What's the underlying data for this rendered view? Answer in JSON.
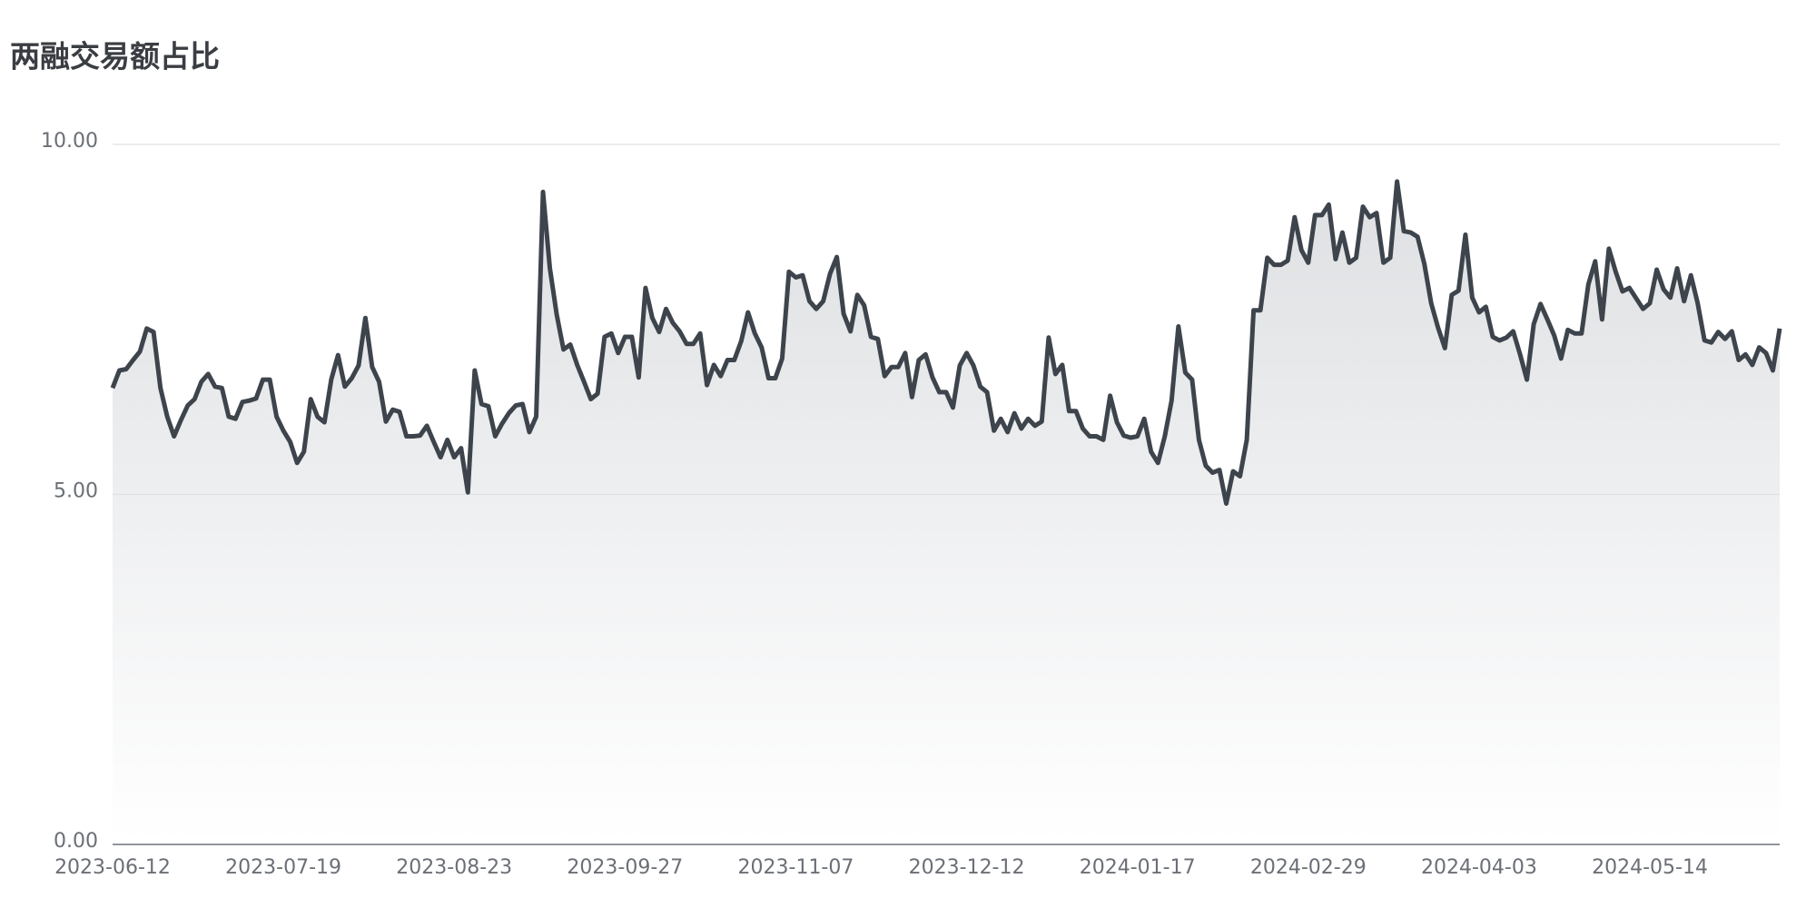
{
  "chart_data": {
    "type": "area",
    "title": "两融交易额占比",
    "categories": [
      "2023-06-12",
      null,
      null,
      null,
      null,
      null,
      null,
      null,
      null,
      null,
      null,
      null,
      null,
      null,
      null,
      null,
      null,
      null,
      null,
      null,
      null,
      null,
      null,
      null,
      null,
      "2023-07-19",
      null,
      null,
      null,
      null,
      null,
      null,
      null,
      null,
      null,
      null,
      null,
      null,
      null,
      null,
      null,
      null,
      null,
      null,
      null,
      null,
      null,
      null,
      null,
      null,
      "2023-08-23",
      null,
      null,
      null,
      null,
      null,
      null,
      null,
      null,
      null,
      null,
      null,
      null,
      null,
      null,
      null,
      null,
      null,
      null,
      null,
      null,
      null,
      null,
      null,
      null,
      "2023-09-27",
      null,
      null,
      null,
      null,
      null,
      null,
      null,
      null,
      null,
      null,
      null,
      null,
      null,
      null,
      null,
      null,
      null,
      null,
      null,
      null,
      null,
      null,
      null,
      null,
      "2023-11-07",
      null,
      null,
      null,
      null,
      null,
      null,
      null,
      null,
      null,
      null,
      null,
      null,
      null,
      null,
      null,
      null,
      null,
      null,
      null,
      null,
      null,
      null,
      null,
      null,
      "2023-12-12",
      null,
      null,
      null,
      null,
      null,
      null,
      null,
      null,
      null,
      null,
      null,
      null,
      null,
      null,
      null,
      null,
      null,
      null,
      null,
      null,
      null,
      null,
      null,
      null,
      "2024-01-17",
      null,
      null,
      null,
      null,
      null,
      null,
      null,
      null,
      null,
      null,
      null,
      null,
      null,
      null,
      null,
      null,
      null,
      null,
      null,
      null,
      null,
      null,
      null,
      null,
      "2024-02-29",
      null,
      null,
      null,
      null,
      null,
      null,
      null,
      null,
      null,
      null,
      null,
      null,
      null,
      null,
      null,
      null,
      null,
      null,
      null,
      null,
      null,
      null,
      null,
      null,
      "2024-04-03",
      null,
      null,
      null,
      null,
      null,
      null,
      null,
      null,
      null,
      null,
      null,
      null,
      null,
      null,
      null,
      null,
      null,
      null,
      null,
      null,
      null,
      null,
      null,
      null,
      "2024-05-14",
      null,
      null,
      null,
      null,
      null,
      null,
      null,
      null,
      null,
      null,
      null,
      null,
      null,
      null,
      null,
      null,
      null,
      null,
      null
    ],
    "values": [
      6.52,
      6.77,
      6.79,
      6.92,
      7.04,
      7.37,
      7.32,
      6.52,
      6.11,
      5.83,
      6.06,
      6.27,
      6.36,
      6.61,
      6.72,
      6.54,
      6.52,
      6.11,
      6.08,
      6.32,
      6.34,
      6.37,
      6.64,
      6.64,
      6.11,
      5.91,
      5.75,
      5.45,
      5.61,
      6.36,
      6.11,
      6.03,
      6.64,
      6.99,
      6.54,
      6.66,
      6.84,
      7.52,
      6.82,
      6.61,
      6.04,
      6.21,
      6.18,
      5.83,
      5.83,
      5.84,
      5.98,
      5.75,
      5.53,
      5.78,
      5.53,
      5.66,
      5.03,
      6.77,
      6.29,
      6.26,
      5.83,
      6.01,
      6.16,
      6.27,
      6.29,
      5.89,
      6.11,
      9.32,
      8.23,
      7.57,
      7.07,
      7.14,
      6.85,
      6.61,
      6.36,
      6.44,
      7.25,
      7.3,
      7.02,
      7.25,
      7.25,
      6.67,
      7.95,
      7.52,
      7.32,
      7.65,
      7.45,
      7.33,
      7.15,
      7.15,
      7.3,
      6.56,
      6.85,
      6.69,
      6.92,
      6.92,
      7.19,
      7.6,
      7.3,
      7.1,
      6.66,
      6.66,
      6.94,
      8.18,
      8.1,
      8.13,
      7.76,
      7.65,
      7.76,
      8.15,
      8.39,
      7.58,
      7.33,
      7.85,
      7.7,
      7.25,
      7.22,
      6.69,
      6.82,
      6.82,
      7.02,
      6.39,
      6.92,
      7.0,
      6.67,
      6.46,
      6.46,
      6.24,
      6.84,
      7.02,
      6.84,
      6.54,
      6.46,
      5.91,
      6.08,
      5.89,
      6.16,
      5.94,
      6.08,
      5.98,
      6.04,
      7.24,
      6.72,
      6.85,
      6.19,
      6.19,
      5.94,
      5.83,
      5.83,
      5.78,
      6.41,
      6.03,
      5.84,
      5.81,
      5.83,
      6.08,
      5.61,
      5.45,
      5.83,
      6.34,
      7.4,
      6.74,
      6.64,
      5.78,
      5.41,
      5.31,
      5.35,
      4.87,
      5.33,
      5.26,
      5.78,
      7.63,
      7.63,
      8.38,
      8.28,
      8.28,
      8.34,
      8.96,
      8.49,
      8.31,
      8.99,
      8.99,
      9.14,
      8.36,
      8.74,
      8.31,
      8.38,
      9.11,
      8.96,
      9.02,
      8.31,
      8.38,
      9.47,
      8.76,
      8.74,
      8.68,
      8.29,
      7.73,
      7.38,
      7.09,
      7.85,
      7.91,
      8.71,
      7.81,
      7.6,
      7.68,
      7.25,
      7.2,
      7.24,
      7.33,
      7.0,
      6.64,
      7.43,
      7.72,
      7.5,
      7.27,
      6.94,
      7.35,
      7.3,
      7.3,
      8.0,
      8.33,
      7.5,
      8.51,
      8.18,
      7.9,
      7.95,
      7.8,
      7.65,
      7.73,
      8.21,
      7.93,
      7.81,
      8.23,
      7.76,
      8.13,
      7.73,
      7.2,
      7.17,
      7.32,
      7.22,
      7.33,
      6.92,
      7.0,
      6.85,
      7.1,
      7.02,
      6.77,
      7.37
    ],
    "color": "#3d444c",
    "ylim": [
      0,
      10
    ],
    "yticks": [
      {
        "value": 0,
        "label": "0.00"
      },
      {
        "value": 5,
        "label": "5.00"
      },
      {
        "value": 10,
        "label": "10.00"
      }
    ],
    "grid": true
  }
}
